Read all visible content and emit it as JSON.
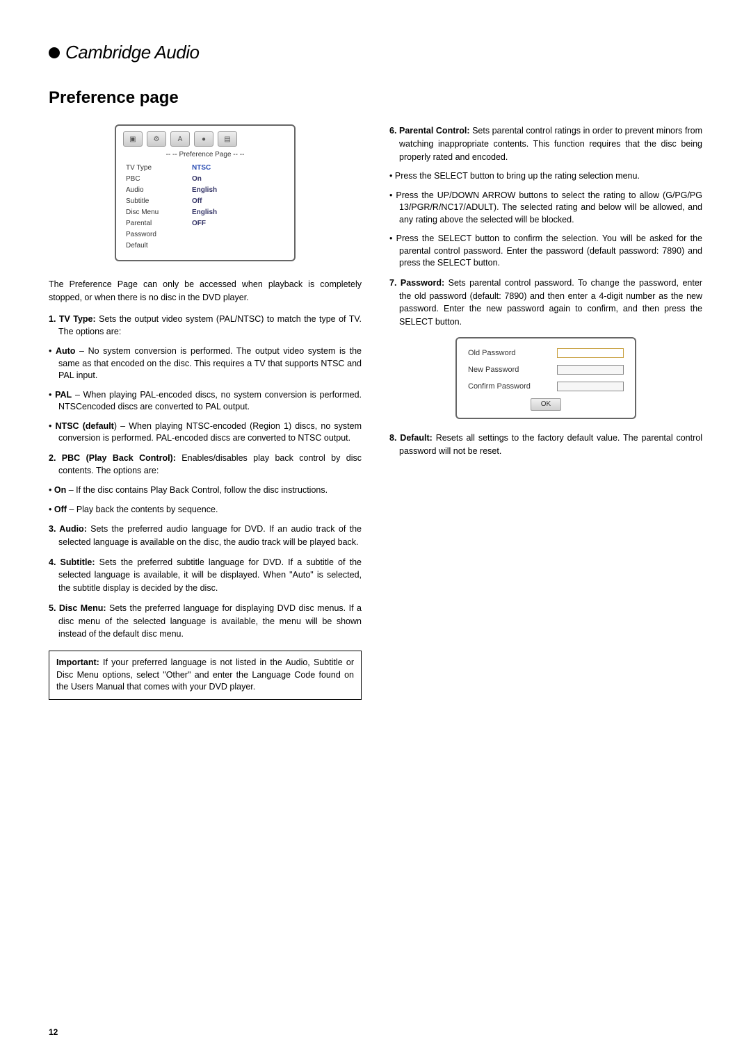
{
  "brand": "Cambridge Audio",
  "page_title": "Preference page",
  "pref_screenshot": {
    "title": "-- -- Preference Page -- --",
    "tabs": [
      "▣",
      "⚙",
      "A",
      "●",
      "▤"
    ],
    "rows": [
      {
        "label": "TV Type",
        "value": "NTSC"
      },
      {
        "label": "PBC",
        "value": "On"
      },
      {
        "label": "Audio",
        "value": "English"
      },
      {
        "label": "Subtitle",
        "value": "Off"
      },
      {
        "label": "Disc Menu",
        "value": "English"
      },
      {
        "label": "Parental",
        "value": "OFF"
      },
      {
        "label": "Password",
        "value": ""
      },
      {
        "label": "Default",
        "value": ""
      }
    ]
  },
  "left": {
    "intro": "The Preference Page can only be accessed when playback is completely stopped, or when there is no disc in the DVD player.",
    "i1_lead": "1. TV Type:",
    "i1_body": " Sets the output video system (PAL/NTSC) to match the type of TV. The options are:",
    "b_auto_lead": "Auto",
    "b_auto_body": " – No system conversion is performed. The output video system is the same as that encoded on the disc. This requires a TV that supports NTSC and PAL input.",
    "b_pal_lead": "PAL",
    "b_pal_body": " – When playing PAL-encoded discs, no system conversion is performed. NTSCencoded discs are converted to PAL output.",
    "b_ntsc_lead": "NTSC (default",
    "b_ntsc_body": ") – When playing NTSC-encoded (Region 1) discs, no system conversion is performed. PAL-encoded discs are converted to NTSC output.",
    "i2_lead": "2. PBC (Play Back Control):",
    "i2_body": " Enables/disables play back control by disc contents. The options are:",
    "b_on_lead": "On",
    "b_on_body": " – If the disc contains Play Back Control, follow the disc instructions.",
    "b_off_lead": "Off",
    "b_off_body": " – Play back the contents by sequence.",
    "i3_lead": "3. Audio:",
    "i3_body": " Sets the preferred audio language for DVD. If an audio track of the selected language is available on the disc, the audio track will be played back.",
    "i4_lead": "4. Subtitle:",
    "i4_body": " Sets the preferred subtitle language for DVD. If a subtitle of the selected language is available, it will be displayed. When \"Auto\" is selected, the subtitle display is decided by the disc.",
    "i5_lead": "5. Disc Menu:",
    "i5_body": " Sets the preferred language for displaying DVD disc menus. If a disc menu of the selected language is available, the menu will be shown instead of the default disc menu.",
    "note_lead": "Important:",
    "note_body": " If your preferred language is not listed in the Audio, Subtitle or Disc Menu options, select \"Other\" and enter the Language Code found on the Users Manual that comes with your DVD player."
  },
  "right": {
    "i6_lead": "6. Parental Control:",
    "i6_body": " Sets parental control ratings in order to prevent minors from watching inappropriate contents. This function requires that the disc being properly rated and encoded.",
    "b1": "Press the SELECT button to bring up the rating selection menu.",
    "b2": "Press the UP/DOWN ARROW buttons to select the rating to allow (G/PG/PG 13/PGR/R/NC17/ADULT). The selected rating and below will be allowed, and any rating above the selected will be blocked.",
    "b3": "Press the SELECT button to confirm the selection. You will be asked for the parental control password. Enter the password (default password: 7890) and press the SELECT button.",
    "i7_lead": "7. Password:",
    "i7_body": " Sets parental control password. To change the password, enter the old password (default: 7890) and then enter a 4-digit number as the new password. Enter the new password again to confirm, and then press the SELECT button.",
    "pw": {
      "old": "Old Password",
      "new": "New Password",
      "confirm": "Confirm Password",
      "ok": "OK"
    },
    "i8_lead": "8. Default:",
    "i8_body": " Resets all settings to the factory default value. The parental control password will not be reset."
  },
  "page_number": "12"
}
